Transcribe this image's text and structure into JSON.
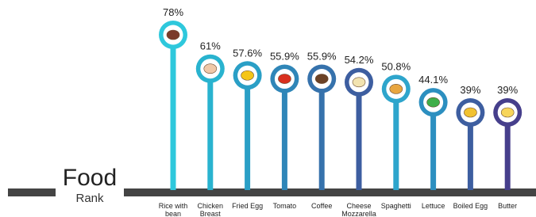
{
  "chart_data": {
    "type": "lollipop",
    "title": "Food",
    "subtitle": "Rank",
    "categories": [
      "Rice with bean",
      "Chicken Breast",
      "Fried Egg",
      "Tomato",
      "Coffee",
      "Cheese Mozzarella",
      "Spaghetti",
      "Lettuce",
      "Boiled Egg",
      "Butter"
    ],
    "values": [
      78,
      61,
      57.6,
      55.9,
      55.9,
      54.2,
      50.8,
      44.1,
      39,
      39
    ],
    "value_labels": [
      "78%",
      "61%",
      "57.6%",
      "55.9%",
      "55.9%",
      "54.2%",
      "50.8%",
      "44.1%",
      "39%",
      "39%"
    ],
    "colors": [
      "#2ec8dc",
      "#29b3cf",
      "#2a9fc6",
      "#2f86b8",
      "#3672ac",
      "#3d5ea0",
      "#2ea5cc",
      "#2c8fc0",
      "#3d5ea0",
      "#463f8c"
    ],
    "icon_colors": [
      "#7a3b2a",
      "#f0c8a8",
      "#f5c518",
      "#d9301e",
      "#6b4226",
      "#f2e3b0",
      "#e8a640",
      "#3fae49",
      "#f2c230",
      "#f7d55a"
    ]
  }
}
